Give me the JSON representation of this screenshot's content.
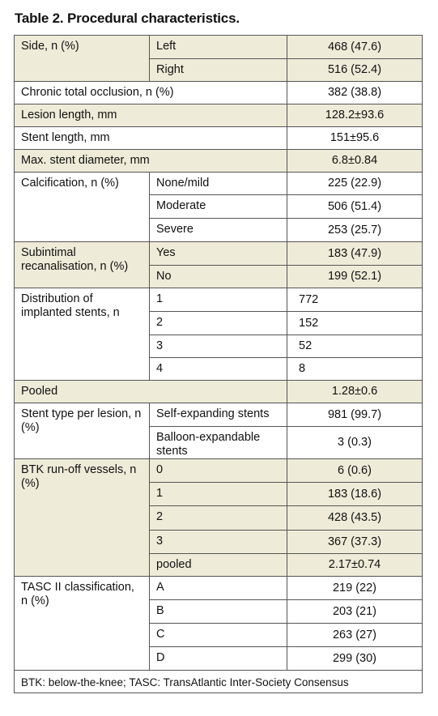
{
  "title": "Table 2. Procedural characteristics.",
  "rows": [
    {
      "cat": "Side, n (%)",
      "shaded": true,
      "subs": [
        {
          "label": "Left",
          "value": "468 (47.6)"
        },
        {
          "label": "Right",
          "value": "516 (52.4)"
        }
      ]
    },
    {
      "cat": "Chronic total occlusion, n (%)",
      "shaded": false,
      "value": "382 (38.8)"
    },
    {
      "cat": "Lesion length, mm",
      "shaded": true,
      "value": "128.2±93.6"
    },
    {
      "cat": "Stent length, mm",
      "shaded": false,
      "value": "151±95.6"
    },
    {
      "cat": "Max. stent diameter, mm",
      "shaded": true,
      "value": "6.8±0.84"
    },
    {
      "cat": "Calcification, n (%)",
      "shaded": false,
      "subs": [
        {
          "label": "None/mild",
          "value": "225 (22.9)"
        },
        {
          "label": "Moderate",
          "value": "506 (51.4)"
        },
        {
          "label": "Severe",
          "value": "253 (25.7)"
        }
      ]
    },
    {
      "cat": "Subintimal recanalisation, n (%)",
      "shaded": true,
      "subs": [
        {
          "label": "Yes",
          "value": "183 (47.9)"
        },
        {
          "label": "No",
          "value": "199 (52.1)"
        }
      ]
    },
    {
      "cat": "Distribution of implanted stents, n",
      "shaded": false,
      "left_values": true,
      "subs": [
        {
          "label": "1",
          "value": "772"
        },
        {
          "label": "2",
          "value": "152"
        },
        {
          "label": "3",
          "value": "52"
        },
        {
          "label": "4",
          "value": "8"
        }
      ]
    },
    {
      "cat": "Pooled",
      "shaded": true,
      "value": "1.28±0.6"
    },
    {
      "cat": "Stent type per lesion, n (%)",
      "shaded": false,
      "subs": [
        {
          "label": "Self-expanding stents",
          "value": "981 (99.7)"
        },
        {
          "label": "Balloon-expandable stents",
          "value": "3 (0.3)"
        }
      ]
    },
    {
      "cat": "BTK run-off vessels, n (%)",
      "shaded": true,
      "subs": [
        {
          "label": "0",
          "value": "6 (0.6)"
        },
        {
          "label": "1",
          "value": "183 (18.6)"
        },
        {
          "label": "2",
          "value": "428 (43.5)"
        },
        {
          "label": "3",
          "value": "367 (37.3)"
        },
        {
          "label": "pooled",
          "value": "2.17±0.74"
        }
      ]
    },
    {
      "cat": "TASC II classification, n (%)",
      "shaded": false,
      "subs": [
        {
          "label": "A",
          "value": "219 (22)"
        },
        {
          "label": "B",
          "value": "203 (21)"
        },
        {
          "label": "C",
          "value": "263 (27)"
        },
        {
          "label": "D",
          "value": "299 (30)"
        }
      ]
    }
  ],
  "footnote": "BTK: below-the-knee; TASC: TransAtlantic Inter-Society Consensus"
}
